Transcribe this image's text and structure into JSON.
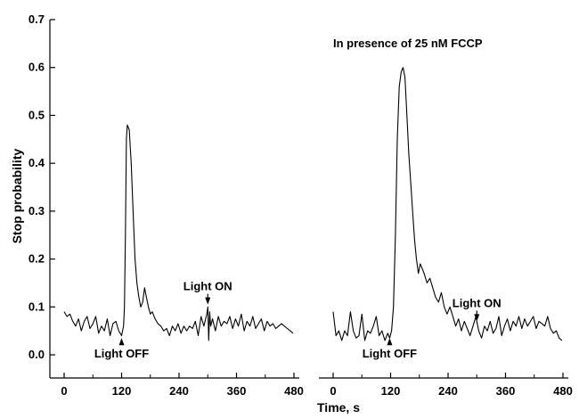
{
  "chart_data": {
    "type": "line",
    "xlabel": "Time, s",
    "ylabel": "Stop probability",
    "ylim": [
      0.0,
      0.7
    ],
    "xlim": [
      0,
      480
    ],
    "y_ticks": [
      "0.0",
      "0.1",
      "0.2",
      "0.3",
      "0.4",
      "0.5",
      "0.6",
      "0.7"
    ],
    "x_ticks": [
      "0",
      "120",
      "240",
      "360",
      "480"
    ],
    "panels": [
      {
        "id": "control",
        "title": "",
        "series": [
          {
            "x": [
              0,
              6,
              12,
              18,
              24,
              30,
              36,
              42,
              48,
              54,
              60,
              66,
              72,
              78,
              84,
              90,
              96,
              102,
              108,
              114,
              120,
              124,
              126,
              128,
              130,
              132,
              136,
              140,
              144,
              148,
              152,
              156,
              160,
              164,
              168,
              172,
              176,
              180,
              184,
              190,
              196,
              202,
              208,
              214,
              220,
              226,
              232,
              238,
              244,
              250,
              256,
              262,
              268,
              274,
              280,
              286,
              292,
              298,
              300,
              302,
              304,
              306,
              310,
              316,
              322,
              328,
              334,
              340,
              346,
              352,
              358,
              364,
              370,
              376,
              382,
              388,
              394,
              400,
              406,
              412,
              418,
              424,
              430,
              436,
              442,
              448,
              454,
              460,
              466,
              472,
              478
            ],
            "y": [
              0.09,
              0.08,
              0.085,
              0.07,
              0.06,
              0.075,
              0.05,
              0.07,
              0.08,
              0.055,
              0.065,
              0.08,
              0.045,
              0.06,
              0.05,
              0.075,
              0.04,
              0.065,
              0.07,
              0.05,
              0.04,
              0.06,
              0.1,
              0.25,
              0.45,
              0.48,
              0.47,
              0.4,
              0.3,
              0.2,
              0.15,
              0.12,
              0.1,
              0.11,
              0.14,
              0.12,
              0.1,
              0.085,
              0.09,
              0.075,
              0.065,
              0.06,
              0.05,
              0.055,
              0.04,
              0.06,
              0.05,
              0.065,
              0.045,
              0.06,
              0.05,
              0.06,
              0.055,
              0.07,
              0.04,
              0.08,
              0.06,
              0.085,
              0.1,
              0.03,
              0.09,
              0.06,
              0.075,
              0.05,
              0.08,
              0.06,
              0.07,
              0.065,
              0.08,
              0.055,
              0.075,
              0.06,
              0.085,
              0.05,
              0.07,
              0.06,
              0.08,
              0.055,
              0.065,
              0.075,
              0.05,
              0.07,
              0.06,
              0.065,
              0.055,
              0.06,
              0.065,
              0.06,
              0.055,
              0.05,
              0.045
            ]
          }
        ],
        "annotations": [
          {
            "text": "Light OFF",
            "x": 120,
            "y": 0.035,
            "arrow": "up"
          },
          {
            "text": "Light ON",
            "x": 300,
            "y": 0.105,
            "arrow": "down"
          }
        ]
      },
      {
        "id": "fccp",
        "title": "In presence of 25 nM FCCP",
        "series": [
          {
            "x": [
              0,
              6,
              12,
              18,
              24,
              30,
              36,
              42,
              48,
              54,
              60,
              66,
              72,
              78,
              84,
              90,
              96,
              102,
              108,
              114,
              118,
              122,
              126,
              130,
              134,
              138,
              142,
              146,
              150,
              154,
              158,
              162,
              166,
              170,
              174,
              178,
              182,
              186,
              190,
              196,
              202,
              208,
              214,
              220,
              226,
              232,
              238,
              244,
              250,
              256,
              262,
              268,
              274,
              280,
              286,
              292,
              298,
              304,
              310,
              316,
              322,
              328,
              334,
              340,
              346,
              352,
              358,
              364,
              370,
              376,
              382,
              388,
              394,
              400,
              406,
              412,
              418,
              424,
              430,
              436,
              442,
              448,
              454,
              460,
              466,
              472,
              478
            ],
            "y": [
              0.09,
              0.04,
              0.05,
              0.03,
              0.05,
              0.04,
              0.09,
              0.05,
              0.035,
              0.04,
              0.085,
              0.03,
              0.05,
              0.045,
              0.06,
              0.08,
              0.04,
              0.05,
              0.03,
              0.045,
              0.035,
              0.05,
              0.1,
              0.25,
              0.45,
              0.56,
              0.59,
              0.6,
              0.58,
              0.5,
              0.42,
              0.36,
              0.3,
              0.24,
              0.2,
              0.17,
              0.19,
              0.18,
              0.17,
              0.15,
              0.16,
              0.14,
              0.12,
              0.11,
              0.13,
              0.1,
              0.085,
              0.1,
              0.08,
              0.06,
              0.075,
              0.05,
              0.07,
              0.055,
              0.04,
              0.06,
              0.08,
              0.05,
              0.035,
              0.06,
              0.05,
              0.07,
              0.045,
              0.055,
              0.08,
              0.04,
              0.06,
              0.075,
              0.05,
              0.07,
              0.06,
              0.08,
              0.055,
              0.075,
              0.06,
              0.07,
              0.08,
              0.055,
              0.07,
              0.065,
              0.06,
              0.08,
              0.055,
              0.045,
              0.05,
              0.035,
              0.03
            ]
          }
        ],
        "annotations": [
          {
            "text": "Light OFF",
            "x": 118,
            "y": 0.035,
            "arrow": "up"
          },
          {
            "text": "Light ON",
            "x": 300,
            "y": 0.07,
            "arrow": "down"
          }
        ]
      }
    ]
  }
}
